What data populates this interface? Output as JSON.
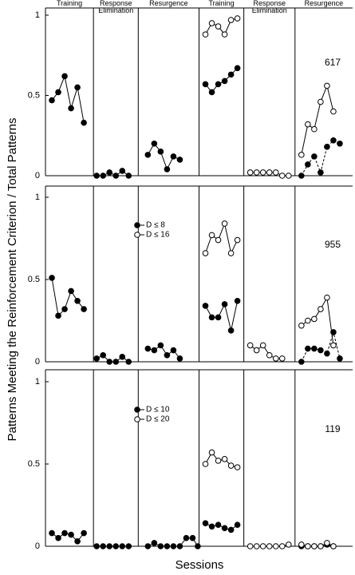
{
  "ylabel": "Patterns Meeting the Reinforcement Criterion / Total Patterns",
  "xlabel": "Sessions",
  "phases": [
    "Training",
    "Response Elimination",
    "Resurgence",
    "Training",
    "Response Elimination",
    "Resurgence"
  ],
  "chart_data": [
    {
      "type": "line",
      "annotation": "617",
      "xlim": [
        0,
        48
      ],
      "ylim": [
        0,
        1
      ],
      "yticks": [
        0,
        0.5,
        1
      ],
      "phase_boundaries": [
        7.5,
        14.5,
        24,
        31,
        39
      ],
      "series": [
        {
          "color": "#000000",
          "marker": "filled",
          "x": [
            1,
            2,
            3,
            4,
            5,
            6,
            null,
            8,
            9,
            10,
            11,
            12,
            13,
            null,
            16,
            17,
            18,
            19,
            20,
            21,
            null,
            25,
            26,
            27,
            28,
            29,
            30
          ],
          "values": [
            0.47,
            0.52,
            0.62,
            0.42,
            0.55,
            0.33,
            null,
            0,
            0,
            0.02,
            0,
            0.03,
            0,
            null,
            0.13,
            0.2,
            0.15,
            0.04,
            0.12,
            0.1,
            null,
            0.57,
            0.52,
            0.57,
            0.59,
            0.63,
            0.67
          ]
        },
        {
          "color": "#000000",
          "marker": "filled",
          "dash": true,
          "x": [
            40,
            41,
            42,
            43,
            44,
            45,
            46
          ],
          "values": [
            0,
            0.07,
            0.12,
            0.02,
            0.18,
            0.22,
            0.2
          ]
        },
        {
          "color": "#000000",
          "marker": "open",
          "x": [
            25,
            26,
            27,
            28,
            29,
            30,
            null,
            32,
            33,
            34,
            35,
            36,
            37,
            38,
            null,
            40,
            41,
            42,
            43,
            44,
            45
          ],
          "values": [
            0.88,
            0.95,
            0.93,
            0.88,
            0.97,
            0.98,
            null,
            0.02,
            0.02,
            0.02,
            0.02,
            0.02,
            0,
            0,
            null,
            0.13,
            0.32,
            0.29,
            0.46,
            0.56,
            0.4
          ]
        }
      ]
    },
    {
      "type": "line",
      "annotation": "955",
      "xlim": [
        0,
        48
      ],
      "ylim": [
        0,
        1
      ],
      "yticks": [
        0,
        0.5,
        1
      ],
      "phase_boundaries": [
        7.5,
        14.5,
        24,
        31,
        39
      ],
      "series": [
        {
          "name": "D ≤ 8",
          "color": "#000000",
          "marker": "filled",
          "x": [
            1,
            2,
            3,
            4,
            5,
            6,
            null,
            8,
            9,
            10,
            11,
            12,
            13,
            null,
            16,
            17,
            18,
            19,
            20,
            21,
            null,
            25,
            26,
            27,
            28,
            29,
            30
          ],
          "values": [
            0.51,
            0.28,
            0.32,
            0.43,
            0.37,
            0.32,
            null,
            0.02,
            0.04,
            0,
            0,
            0.03,
            0,
            null,
            0.08,
            0.07,
            0.1,
            0.04,
            0.07,
            0.02,
            null,
            0.34,
            0.27,
            0.27,
            0.35,
            0.19,
            0.37
          ]
        },
        {
          "color": "#000000",
          "marker": "filled",
          "dash": true,
          "x": [
            40,
            41,
            42,
            43,
            44,
            45,
            46
          ],
          "values": [
            0,
            0.08,
            0.08,
            0.07,
            0.05,
            0.18,
            0.02
          ]
        },
        {
          "name": "D ≤ 16",
          "color": "#000000",
          "marker": "open",
          "x": [
            25,
            26,
            27,
            28,
            29,
            30,
            null,
            32,
            33,
            34,
            35,
            36,
            37,
            null,
            40,
            41,
            42,
            43,
            44,
            45
          ],
          "values": [
            0.66,
            0.77,
            0.74,
            0.84,
            0.66,
            0.74,
            null,
            0.1,
            0.07,
            0.1,
            0.04,
            0.02,
            0.02,
            null,
            0.22,
            0.25,
            0.26,
            0.32,
            0.39,
            0.1
          ]
        }
      ]
    },
    {
      "type": "line",
      "annotation": "119",
      "xlim": [
        0,
        48
      ],
      "ylim": [
        0,
        1
      ],
      "yticks": [
        0,
        0.5,
        1
      ],
      "phase_boundaries": [
        7.5,
        14.5,
        24,
        31,
        39
      ],
      "series": [
        {
          "name": "D ≤ 10",
          "color": "#000000",
          "marker": "filled",
          "x": [
            1,
            2,
            3,
            4,
            5,
            6,
            null,
            8,
            9,
            10,
            11,
            12,
            13,
            null,
            16,
            17,
            18,
            19,
            20,
            21,
            22,
            23,
            23.8,
            null,
            25,
            26,
            27,
            28,
            29,
            30
          ],
          "values": [
            0.08,
            0.05,
            0.08,
            0.07,
            0.03,
            0.08,
            null,
            0,
            0,
            0,
            0,
            0,
            0,
            null,
            0,
            0.02,
            0,
            0,
            0,
            0,
            0.05,
            0.05,
            0,
            null,
            0.14,
            0.12,
            0.13,
            0.11,
            0.1,
            0.13
          ]
        },
        {
          "color": "#000000",
          "marker": "filled",
          "dash": true,
          "x": [
            40,
            41,
            42,
            43,
            44,
            45
          ],
          "values": [
            0,
            0,
            0,
            0,
            0.01,
            0
          ]
        },
        {
          "name": "D ≤ 20",
          "color": "#000000",
          "marker": "open",
          "x": [
            25,
            26,
            27,
            28,
            29,
            30,
            null,
            32,
            33,
            34,
            35,
            36,
            37,
            38,
            null,
            40,
            41,
            42,
            43,
            44,
            45
          ],
          "values": [
            0.5,
            0.57,
            0.52,
            0.53,
            0.49,
            0.48,
            null,
            0,
            0,
            0,
            0,
            0,
            0,
            0.01,
            null,
            0.01,
            0,
            0,
            0,
            0.02,
            0
          ]
        }
      ]
    }
  ]
}
